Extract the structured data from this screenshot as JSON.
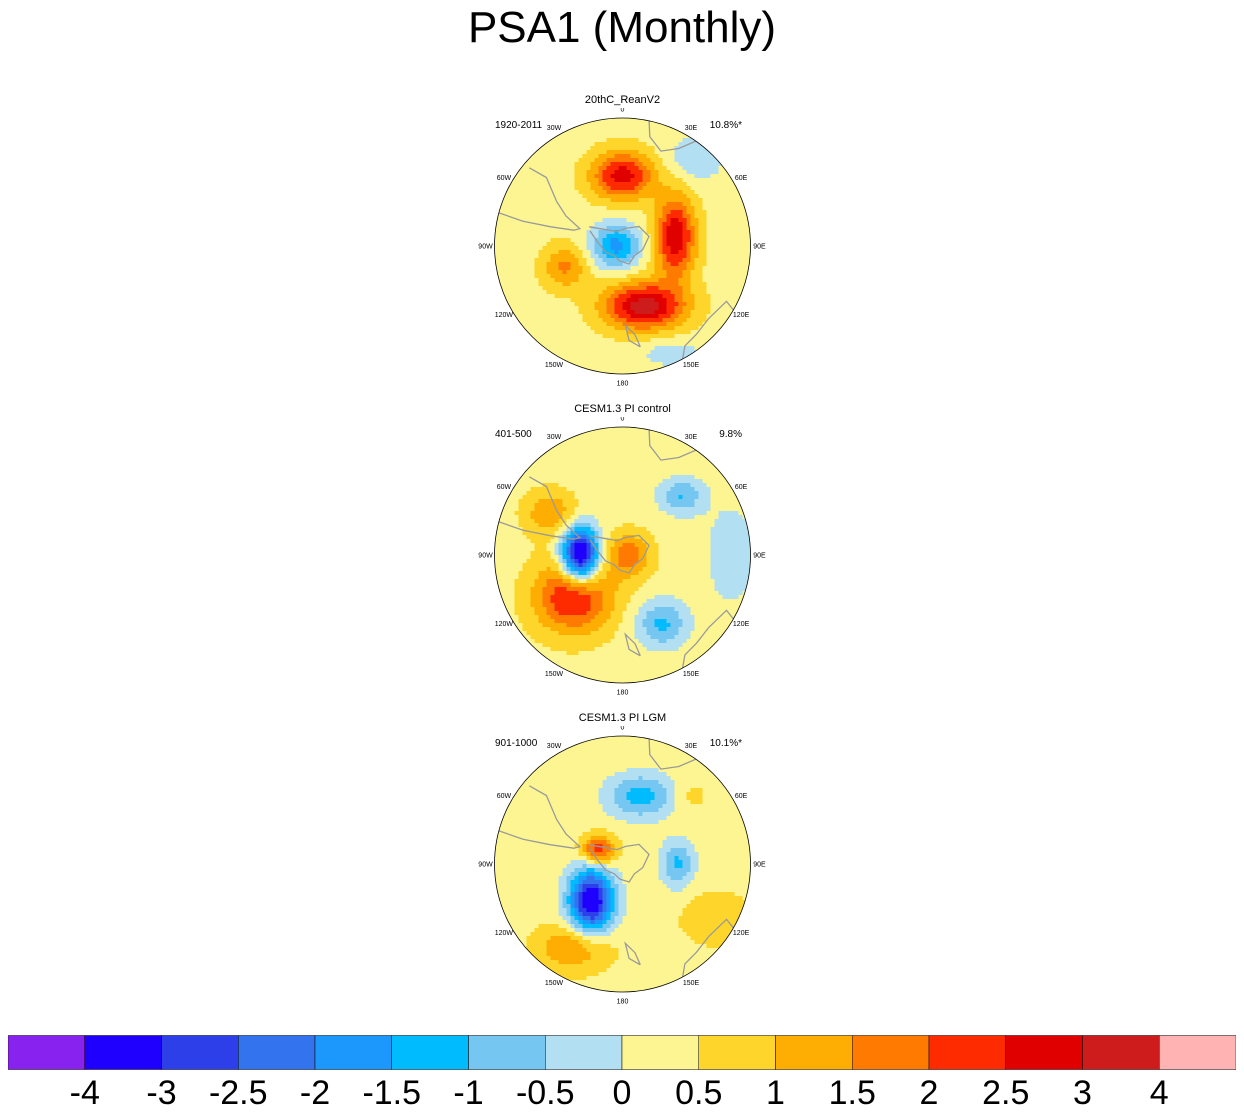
{
  "title": "PSA1 (Monthly)",
  "panels": [
    {
      "title": "20thC_ReanV2",
      "period": "1920-2011",
      "percent": "10.8%*",
      "anomalies": [
        {
          "lon": 0,
          "r": 0.55,
          "amp": 2.5,
          "sx": 0.17,
          "sy": 0.13
        },
        {
          "lon": 80,
          "r": 0.42,
          "amp": 2.7,
          "sx": 0.11,
          "sy": 0.22
        },
        {
          "lon": 160,
          "r": 0.5,
          "amp": 3.0,
          "sx": 0.22,
          "sy": 0.13
        },
        {
          "lon": -110,
          "r": 0.48,
          "amp": 1.3,
          "sx": 0.12,
          "sy": 0.12
        },
        {
          "lon": -90,
          "r": 0.05,
          "amp": -2.0,
          "sx": 0.13,
          "sy": 0.12
        },
        {
          "lon": 40,
          "r": 0.9,
          "amp": -0.8,
          "sx": 0.15,
          "sy": 0.12
        },
        {
          "lon": 155,
          "r": 0.92,
          "amp": -0.6,
          "sx": 0.18,
          "sy": 0.08
        }
      ]
    },
    {
      "title": "CESM1.3 PI control",
      "period": "401-500",
      "percent": "9.8%",
      "anomalies": [
        {
          "lon": -90,
          "r": 0.33,
          "amp": -4.6,
          "sx": 0.1,
          "sy": 0.15
        },
        {
          "lon": -130,
          "r": 0.5,
          "amp": 2.4,
          "sx": 0.21,
          "sy": 0.2
        },
        {
          "lon": -60,
          "r": 0.65,
          "amp": 1.2,
          "sx": 0.14,
          "sy": 0.12
        },
        {
          "lon": 90,
          "r": 0.05,
          "amp": 1.5,
          "sx": 0.12,
          "sy": 0.12
        },
        {
          "lon": 45,
          "r": 0.65,
          "amp": -1.3,
          "sx": 0.12,
          "sy": 0.1
        },
        {
          "lon": 150,
          "r": 0.62,
          "amp": -1.4,
          "sx": 0.14,
          "sy": 0.13
        },
        {
          "lon": 90,
          "r": 0.85,
          "amp": -0.6,
          "sx": 0.15,
          "sy": 0.3
        }
      ]
    },
    {
      "title": "CESM1.3 PI LGM",
      "period": "901-1000",
      "percent": "10.1%*",
      "anomalies": [
        {
          "lon": 15,
          "r": 0.55,
          "amp": -1.6,
          "sx": 0.18,
          "sy": 0.12
        },
        {
          "lon": -140,
          "r": 0.38,
          "amp": -4.0,
          "sx": 0.12,
          "sy": 0.18
        },
        {
          "lon": -150,
          "r": 0.75,
          "amp": 1.3,
          "sx": 0.2,
          "sy": 0.13
        },
        {
          "lon": -60,
          "r": 0.22,
          "amp": 2.2,
          "sx": 0.09,
          "sy": 0.08
        },
        {
          "lon": 90,
          "r": 0.43,
          "amp": -1.4,
          "sx": 0.09,
          "sy": 0.13
        },
        {
          "lon": 120,
          "r": 0.85,
          "amp": 0.6,
          "sx": 0.2,
          "sy": 0.15
        },
        {
          "lon": 45,
          "r": 0.75,
          "amp": 0.4,
          "sx": 0.1,
          "sy": 0.1
        }
      ]
    }
  ],
  "lon_labels": [
    "0",
    "30E",
    "60E",
    "90E",
    "120E",
    "150E",
    "180",
    "150W",
    "120W",
    "90W",
    "60W",
    "30W"
  ],
  "colorbar": {
    "levels": [
      -4,
      -3,
      -2.5,
      -2,
      -1.5,
      -1,
      -0.5,
      0,
      0.5,
      1,
      1.5,
      2,
      2.5,
      3,
      4
    ],
    "labels": [
      "-4",
      "-3",
      "-2.5",
      "-2",
      "-1.5",
      "-1",
      "-0.5",
      "0",
      "0.5",
      "1",
      "1.5",
      "2",
      "2.5",
      "3",
      "4"
    ],
    "colors": [
      "#8822ee",
      "#1f00ff",
      "#2d3fe8",
      "#3374ee",
      "#1c97fb",
      "#00bcfe",
      "#75c7f2",
      "#b3dff2",
      "#fdf592",
      "#fed52a",
      "#fead03",
      "#ff7a00",
      "#ff2b00",
      "#e10000",
      "#ce1c1c",
      "#ffb3b3"
    ]
  }
}
